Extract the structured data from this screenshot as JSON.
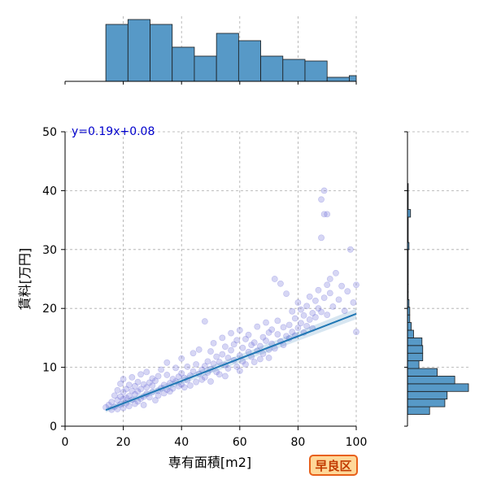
{
  "badge_label": "早良区",
  "chart_data": {
    "type": "scatter",
    "xlabel": "専有面積[m2]",
    "ylabel": "賃料[万円]",
    "xlim": [
      0,
      100
    ],
    "ylim": [
      0,
      50
    ],
    "xticks": [
      0,
      20,
      40,
      60,
      80,
      100
    ],
    "yticks": [
      0,
      10,
      20,
      30,
      40,
      50
    ],
    "grid": true,
    "regression": {
      "slope": 0.19,
      "intercept": 0.08,
      "x_range": [
        14,
        100
      ],
      "label": "y=0.19x+0.08"
    },
    "colors": {
      "points": "#6a6ad8",
      "fit_line": "#1f77b4",
      "hist_bar": "#5799c7",
      "badge_border": "#e8601a",
      "badge_fill": "#ffd899",
      "badge_text": "#c23a00"
    },
    "x_histogram": {
      "bin_edges": [
        0,
        7.5,
        14,
        21.6,
        29.2,
        36.8,
        44.4,
        52,
        59.6,
        67.2,
        74.8,
        82.4,
        90,
        97.6,
        100
      ],
      "counts": [
        0,
        0,
        70,
        76,
        70,
        42,
        31,
        59,
        50,
        31,
        27,
        25,
        5,
        7
      ]
    },
    "y_histogram": {
      "bin_edges": [
        2,
        3.3,
        4.6,
        5.9,
        7.2,
        8.5,
        9.8,
        11.1,
        12.4,
        13.7,
        15,
        16.3,
        17.6,
        18.9,
        20.2,
        21.5,
        22.8,
        24.1,
        30,
        31.2,
        35.5,
        36.8,
        40,
        41.2
      ],
      "counts": [
        29,
        49,
        52,
        80,
        62,
        39,
        15,
        20,
        20,
        19,
        8,
        5,
        3,
        3,
        2,
        1,
        1,
        1,
        2,
        1,
        4,
        1,
        1
      ]
    },
    "points": [
      [
        14,
        3.2
      ],
      [
        15,
        3.6
      ],
      [
        16,
        2.8
      ],
      [
        16,
        4.1
      ],
      [
        17,
        3.3
      ],
      [
        17,
        5.2
      ],
      [
        18,
        2.9
      ],
      [
        18,
        4.4
      ],
      [
        18,
        6.1
      ],
      [
        19,
        3.7
      ],
      [
        19,
        5.0
      ],
      [
        19,
        7.2
      ],
      [
        20,
        3.1
      ],
      [
        20,
        4.6
      ],
      [
        20,
        5.8
      ],
      [
        20,
        8.0
      ],
      [
        21,
        3.9
      ],
      [
        21,
        6.3
      ],
      [
        21,
        4.8
      ],
      [
        22,
        5.1
      ],
      [
        22,
        3.4
      ],
      [
        22,
        7.0
      ],
      [
        23,
        4.5
      ],
      [
        23,
        6.0
      ],
      [
        23,
        8.3
      ],
      [
        24,
        3.8
      ],
      [
        24,
        5.4
      ],
      [
        24,
        6.8
      ],
      [
        25,
        4.2
      ],
      [
        25,
        7.5
      ],
      [
        25,
        5.9
      ],
      [
        26,
        4.7
      ],
      [
        26,
        6.3
      ],
      [
        26,
        8.8
      ],
      [
        27,
        5.0
      ],
      [
        27,
        3.6
      ],
      [
        27,
        7.1
      ],
      [
        28,
        5.5
      ],
      [
        28,
        6.6
      ],
      [
        28,
        9.2
      ],
      [
        29,
        4.9
      ],
      [
        29,
        7.4
      ],
      [
        30,
        5.8
      ],
      [
        30,
        6.9
      ],
      [
        30,
        8.1
      ],
      [
        31,
        4.4
      ],
      [
        31,
        7.7
      ],
      [
        32,
        6.0
      ],
      [
        32,
        8.5
      ],
      [
        32,
        5.2
      ],
      [
        33,
        6.5
      ],
      [
        33,
        9.6
      ],
      [
        34,
        7.0
      ],
      [
        34,
        5.6
      ],
      [
        35,
        6.2
      ],
      [
        35,
        8.7
      ],
      [
        35,
        10.8
      ],
      [
        36,
        7.3
      ],
      [
        36,
        5.9
      ],
      [
        37,
        8.0
      ],
      [
        37,
        6.4
      ],
      [
        38,
        7.6
      ],
      [
        38,
        9.9
      ],
      [
        39,
        6.8
      ],
      [
        39,
        8.4
      ],
      [
        40,
        7.1
      ],
      [
        40,
        9.0
      ],
      [
        40,
        11.5
      ],
      [
        41,
        8.2
      ],
      [
        41,
        6.6
      ],
      [
        42,
        7.8
      ],
      [
        42,
        10.1
      ],
      [
        43,
        8.6
      ],
      [
        43,
        6.9
      ],
      [
        44,
        9.3
      ],
      [
        44,
        12.4
      ],
      [
        45,
        7.5
      ],
      [
        45,
        10.5
      ],
      [
        46,
        8.9
      ],
      [
        46,
        13.0
      ],
      [
        47,
        9.6
      ],
      [
        47,
        7.9
      ],
      [
        48,
        10.2
      ],
      [
        48,
        8.3
      ],
      [
        48,
        17.8
      ],
      [
        49,
        11.0
      ],
      [
        49,
        9.1
      ],
      [
        50,
        9.7
      ],
      [
        50,
        12.7
      ],
      [
        50,
        7.6
      ],
      [
        51,
        10.6
      ],
      [
        51,
        14.1
      ],
      [
        52,
        9.2
      ],
      [
        52,
        11.8
      ],
      [
        53,
        10.9
      ],
      [
        53,
        8.8
      ],
      [
        54,
        12.2
      ],
      [
        54,
        15.0
      ],
      [
        55,
        10.4
      ],
      [
        55,
        13.5
      ],
      [
        55,
        8.5
      ],
      [
        56,
        11.6
      ],
      [
        56,
        9.8
      ],
      [
        57,
        12.9
      ],
      [
        57,
        15.8
      ],
      [
        58,
        11.2
      ],
      [
        58,
        13.9
      ],
      [
        59,
        10.1
      ],
      [
        59,
        14.6
      ],
      [
        60,
        12.0
      ],
      [
        60,
        16.3
      ],
      [
        60,
        9.4
      ],
      [
        61,
        13.3
      ],
      [
        61,
        11.0
      ],
      [
        62,
        14.8
      ],
      [
        62,
        10.5
      ],
      [
        63,
        12.6
      ],
      [
        63,
        15.5
      ],
      [
        64,
        11.8
      ],
      [
        64,
        13.8
      ],
      [
        65,
        14.2
      ],
      [
        65,
        10.9
      ],
      [
        66,
        12.8
      ],
      [
        66,
        16.9
      ],
      [
        67,
        13.6
      ],
      [
        67,
        11.4
      ],
      [
        68,
        15.1
      ],
      [
        68,
        12.3
      ],
      [
        69,
        14.5
      ],
      [
        69,
        17.6
      ],
      [
        70,
        13.0
      ],
      [
        70,
        15.9
      ],
      [
        70,
        11.6
      ],
      [
        71,
        16.4
      ],
      [
        71,
        14.0
      ],
      [
        72,
        25.0
      ],
      [
        72,
        13.2
      ],
      [
        73,
        15.6
      ],
      [
        73,
        17.9
      ],
      [
        74,
        14.4
      ],
      [
        74,
        24.2
      ],
      [
        75,
        16.8
      ],
      [
        75,
        13.8
      ],
      [
        76,
        15.3
      ],
      [
        76,
        22.5
      ],
      [
        77,
        17.2
      ],
      [
        77,
        14.9
      ],
      [
        78,
        16.0
      ],
      [
        78,
        19.5
      ],
      [
        79,
        18.3
      ],
      [
        79,
        15.4
      ],
      [
        80,
        16.7
      ],
      [
        80,
        21.0
      ],
      [
        81,
        17.5
      ],
      [
        81,
        19.8
      ],
      [
        82,
        15.9
      ],
      [
        82,
        18.8
      ],
      [
        83,
        20.4
      ],
      [
        83,
        17.0
      ],
      [
        84,
        18.1
      ],
      [
        84,
        22.0
      ],
      [
        85,
        16.6
      ],
      [
        85,
        19.2
      ],
      [
        86,
        21.3
      ],
      [
        86,
        18.5
      ],
      [
        87,
        20.0
      ],
      [
        87,
        23.1
      ],
      [
        88,
        19.4
      ],
      [
        88,
        32.0
      ],
      [
        88,
        38.5
      ],
      [
        89,
        40.0
      ],
      [
        89,
        36.0
      ],
      [
        89,
        21.8
      ],
      [
        90,
        36.0
      ],
      [
        90,
        24.0
      ],
      [
        90,
        18.9
      ],
      [
        91,
        25.0
      ],
      [
        91,
        22.6
      ],
      [
        92,
        20.3
      ],
      [
        93,
        26.0
      ],
      [
        94,
        21.5
      ],
      [
        95,
        23.8
      ],
      [
        96,
        19.6
      ],
      [
        97,
        22.9
      ],
      [
        98,
        30.0
      ],
      [
        99,
        21.0
      ],
      [
        100,
        24.0
      ],
      [
        100,
        16.0
      ]
    ]
  }
}
